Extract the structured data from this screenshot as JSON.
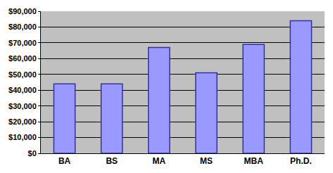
{
  "chart_data": {
    "type": "bar",
    "categories": [
      "BA",
      "BS",
      "MA",
      "MS",
      "MBA",
      "Ph.D."
    ],
    "values": [
      44000,
      44000,
      67000,
      51000,
      69000,
      84000
    ],
    "color": "#9999ff",
    "ylim": [
      0,
      90000
    ],
    "yticks": [
      {
        "value": 0,
        "label": "$0"
      },
      {
        "value": 10000,
        "label": "$10,000"
      },
      {
        "value": 20000,
        "label": "$20,000"
      },
      {
        "value": 30000,
        "label": "$30,000"
      },
      {
        "value": 40000,
        "label": "$40,000"
      },
      {
        "value": 50000,
        "label": "$50,000"
      },
      {
        "value": 60000,
        "label": "$60,000"
      },
      {
        "value": 70000,
        "label": "$70,000"
      },
      {
        "value": 80000,
        "label": "$80,000"
      },
      {
        "value": 90000,
        "label": "$90,000"
      }
    ],
    "grid": true
  }
}
